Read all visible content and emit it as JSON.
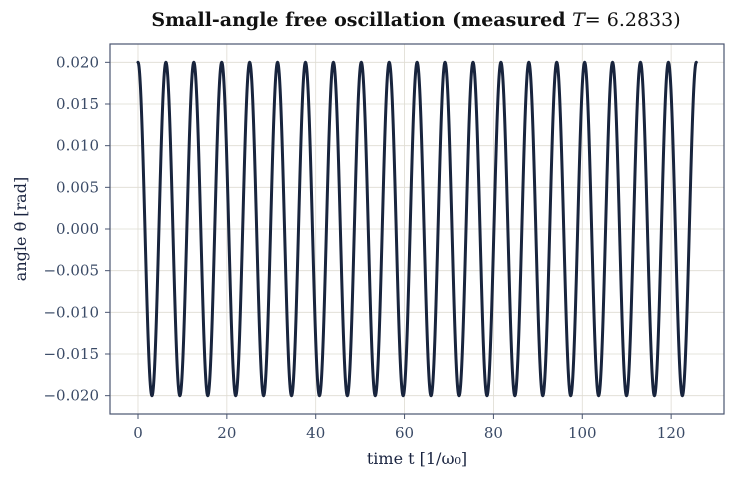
{
  "chart_data": {
    "type": "line",
    "title": "Small-angle free oscillation  (measured T = 6.2833)",
    "title_text": "Small-angle free oscillation  (measured ",
    "title_var": "T",
    "title_value": "= 6.2833)",
    "xlabel": "time  t  [1/ω₀]",
    "ylabel": "angle  θ  [rad]",
    "xlim": [
      -6.3,
      131.9
    ],
    "ylim": [
      -0.0222,
      0.0222
    ],
    "x_ticks": [
      0,
      20,
      40,
      60,
      80,
      100,
      120
    ],
    "x_tick_labels": [
      "0",
      "20",
      "40",
      "60",
      "80",
      "100",
      "120"
    ],
    "y_ticks": [
      0.02,
      0.015,
      0.01,
      0.005,
      0.0,
      -0.005,
      -0.01,
      -0.015,
      -0.02
    ],
    "y_tick_labels": [
      "0.020",
      "0.015",
      "0.010",
      "0.005",
      "0.000",
      "−0.005",
      "−0.010",
      "−0.015",
      "−0.020"
    ],
    "grid": true,
    "series": [
      {
        "amplitude": 0.02,
        "period": 6.2833,
        "phase": 0,
        "x_start": 0,
        "x_end": 125.666,
        "color": "#18243d"
      }
    ]
  },
  "colors": {
    "grid": "#dedbd2",
    "frame": "#4a5570",
    "line": "#18243d",
    "tick_text": "#3a4a66"
  }
}
